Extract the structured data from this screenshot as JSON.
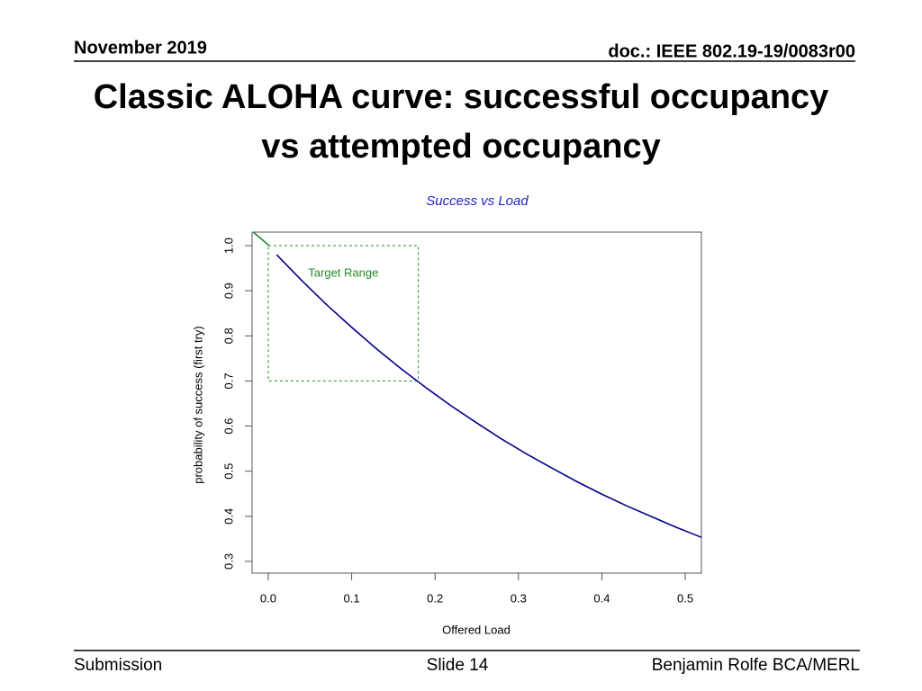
{
  "header": {
    "date": "November 2019",
    "doc": "doc.: IEEE 802.19-19/0083r00"
  },
  "title_lines": [
    "Classic ALOHA curve: successful occupancy",
    "vs attempted occupancy"
  ],
  "footer": {
    "left": "Submission",
    "center": "Slide 14",
    "right": "Benjamin Rolfe BCA/MERL"
  },
  "chart_data": {
    "type": "line",
    "title": "Success vs Load",
    "x_label": "Offered Load",
    "y_label": "probability of success (first try)",
    "xlim": [
      -0.0194,
      0.5194
    ],
    "ylim": [
      0.274,
      1.03
    ],
    "xticks": [
      {
        "value": 0,
        "label": "0.0"
      },
      0.1,
      0.2,
      0.3,
      0.4,
      0.5
    ],
    "yticks": [
      0.3,
      0.4,
      0.5,
      0.6,
      0.7,
      0.8,
      0.9,
      {
        "value": 1,
        "label": "1.0"
      }
    ],
    "series": [
      {
        "color": "#00008b",
        "x": [
          0.01,
          0.04,
          0.07,
          0.1,
          0.13,
          0.16,
          0.19,
          0.22,
          0.25,
          0.28,
          0.31,
          0.34,
          0.37,
          0.4,
          0.43,
          0.46,
          0.49,
          0.52
        ],
        "values": [
          0.98,
          0.923,
          0.869,
          0.819,
          0.771,
          0.726,
          0.684,
          0.644,
          0.607,
          0.571,
          0.538,
          0.507,
          0.477,
          0.449,
          0.423,
          0.399,
          0.375,
          0.353
        ]
      },
      {
        "color": "#228b22",
        "x": [
          -0.018,
          0.001
        ],
        "values": [
          1.03,
          1.0
        ]
      }
    ],
    "target_range": {
      "label": "Target Range",
      "color": "#228b22",
      "xlim": [
        0,
        0.18
      ],
      "ylim": [
        0.7,
        1.0
      ]
    }
  }
}
